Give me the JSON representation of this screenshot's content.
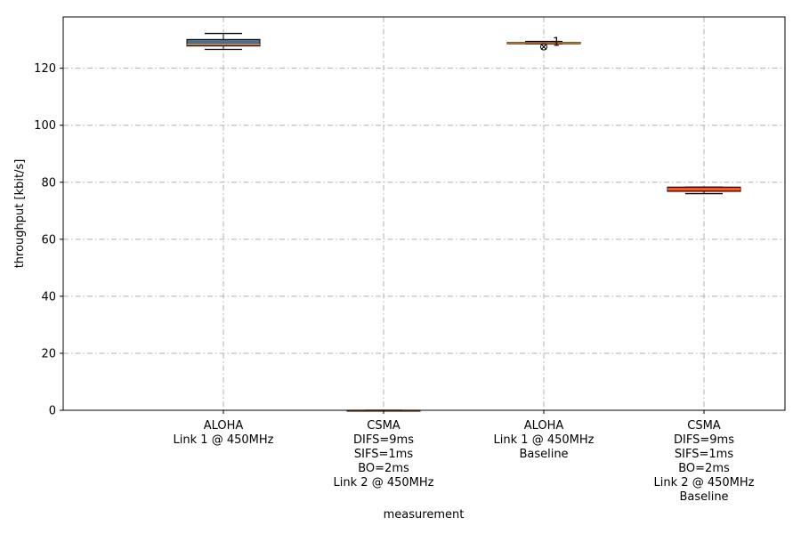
{
  "chart_data": {
    "type": "box",
    "title": "",
    "xlabel": "measurement",
    "ylabel": "throughput [kbit/s]",
    "ylim": [
      0,
      138
    ],
    "yticks": [
      0,
      20,
      40,
      60,
      80,
      100,
      120
    ],
    "grid": true,
    "categories": [
      [
        "ALOHA",
        "Link 1 @ 450MHz"
      ],
      [
        "CSMA",
        "DIFS=9ms",
        "SIFS=1ms",
        "BO=2ms",
        "Link 2 @ 450MHz"
      ],
      [
        "ALOHA",
        "Link 1 @ 450MHz",
        "Baseline"
      ],
      [
        "CSMA",
        "DIFS=9ms",
        "SIFS=1ms",
        "BO=2ms",
        "Link 2 @ 450MHz",
        "Baseline"
      ]
    ],
    "boxes": [
      {
        "whisker_low": 126.6,
        "q1": 127.8,
        "median": 128.3,
        "q3": 130.1,
        "whisker_high": 132.2,
        "color": "#4a6f8f",
        "outliers": []
      },
      {
        "whisker_low": 0,
        "q1": 0,
        "median": 0,
        "q3": 0,
        "whisker_high": 0,
        "color": "#c0392b",
        "outliers": []
      },
      {
        "whisker_low": 128.6,
        "q1": 128.6,
        "median": 128.9,
        "q3": 129.1,
        "whisker_high": 129.4,
        "color": "#e07b39",
        "outliers": [
          127.5
        ]
      },
      {
        "whisker_low": 76.0,
        "q1": 76.8,
        "median": 77.6,
        "q3": 78.3,
        "whisker_high": 78.3,
        "color": "#ff2a00",
        "outliers": []
      }
    ],
    "median_color": "#f07f1b",
    "annotations": [
      {
        "text": "1",
        "x_index": 2,
        "y": 129.2
      }
    ]
  }
}
